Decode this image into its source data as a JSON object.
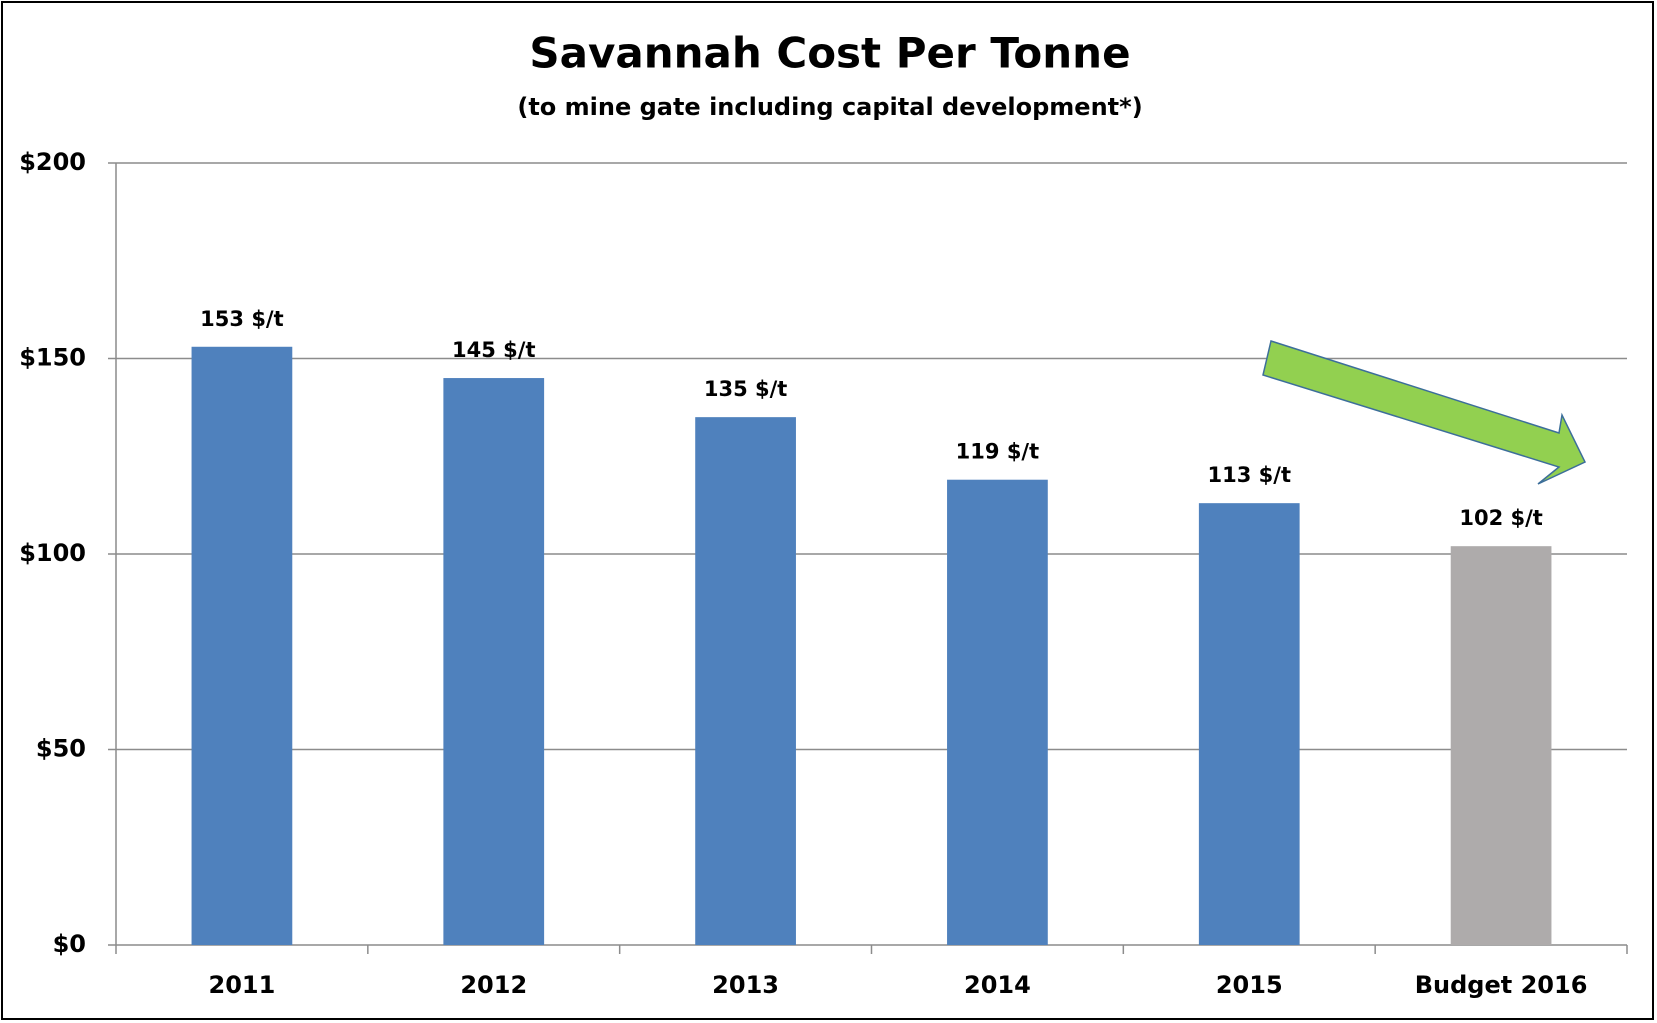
{
  "chart_data": {
    "type": "bar",
    "title": "Savannah Cost Per Tonne",
    "subtitle": "(to mine gate including capital development*)",
    "categories": [
      "2011",
      "2012",
      "2013",
      "2014",
      "2015",
      "Budget 2016"
    ],
    "values": [
      153,
      145,
      135,
      119,
      113,
      102
    ],
    "value_labels": [
      "153 $/t",
      "145 $/t",
      "135 $/t",
      "119 $/t",
      "113 $/t",
      "102 $/t"
    ],
    "colors": [
      "#4f81bd",
      "#4f81bd",
      "#4f81bd",
      "#4f81bd",
      "#4f81bd",
      "#aeabab"
    ],
    "ylim": [
      0,
      200
    ],
    "yticks": [
      {
        "value": 0,
        "label": "$0"
      },
      {
        "value": 50,
        "label": "$50"
      },
      {
        "value": 100,
        "label": "$100"
      },
      {
        "value": 150,
        "label": "$150"
      },
      {
        "value": 200,
        "label": "$200"
      }
    ],
    "grid": true
  }
}
